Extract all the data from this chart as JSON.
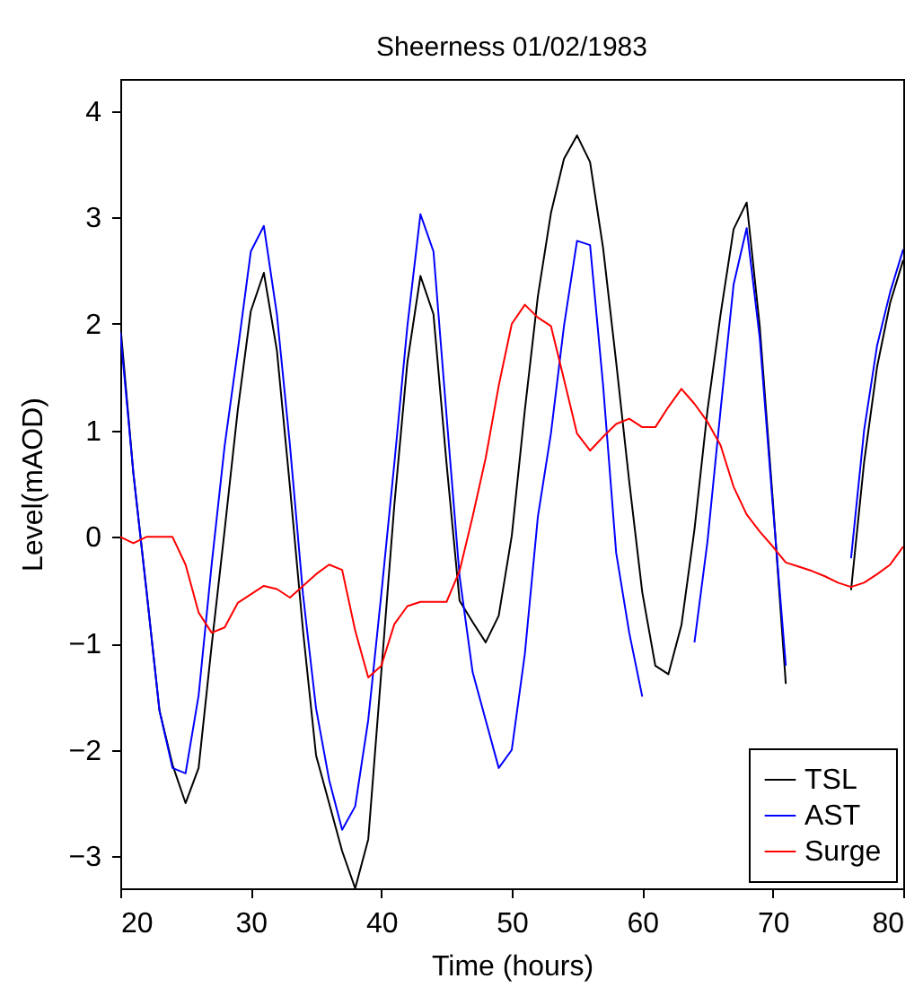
{
  "chart_data": {
    "type": "line",
    "title": "Sheerness 01/02/1983",
    "xlabel": "Time (hours)",
    "ylabel": "Level(mAOD)",
    "x": [
      20,
      21,
      22,
      23,
      24,
      25,
      26,
      27,
      28,
      29,
      30,
      31,
      32,
      33,
      34,
      35,
      36,
      37,
      38,
      39,
      40,
      41,
      42,
      43,
      44,
      45,
      46,
      47,
      48,
      49,
      50,
      51,
      52,
      53,
      54,
      55,
      56,
      57,
      58,
      59,
      60,
      61,
      62,
      63,
      64,
      65,
      66,
      67,
      68,
      69,
      70,
      71,
      72,
      73,
      74,
      75,
      76,
      77,
      78,
      79,
      80
    ],
    "series": [
      {
        "name": "TSL",
        "color": "#000000",
        "values": [
          2.0,
          0.6,
          -0.5,
          -1.63,
          -2.14,
          -2.5,
          -2.17,
          -1.02,
          0.07,
          1.19,
          2.12,
          2.48,
          1.75,
          0.47,
          -0.88,
          -2.05,
          -2.5,
          -2.95,
          -3.3,
          -2.84,
          -1.27,
          0.3,
          1.64,
          2.45,
          2.09,
          0.69,
          -0.6,
          -0.8,
          -0.99,
          -0.74,
          0.01,
          1.19,
          2.26,
          3.04,
          3.55,
          3.77,
          3.52,
          2.71,
          1.64,
          0.52,
          -0.52,
          -1.21,
          -1.29,
          -0.83,
          0.07,
          1.19,
          2.09,
          2.89,
          3.14,
          1.98,
          0.35,
          -1.38,
          null,
          null,
          null,
          null,
          -0.5,
          0.7,
          1.6,
          2.2,
          2.6
        ]
      },
      {
        "name": "AST",
        "color": "#0000ff",
        "values": [
          1.92,
          0.6,
          -0.5,
          -1.63,
          -2.17,
          -2.22,
          -1.49,
          -0.26,
          0.86,
          1.75,
          2.68,
          2.92,
          2.09,
          0.86,
          -0.54,
          -1.61,
          -2.28,
          -2.75,
          -2.53,
          -1.72,
          -0.54,
          0.69,
          1.98,
          3.03,
          2.68,
          1.14,
          -0.37,
          -1.27,
          -1.72,
          -2.17,
          -2.0,
          -1.1,
          0.19,
          0.97,
          1.98,
          2.78,
          2.74,
          1.42,
          -0.15,
          -0.9,
          -1.5,
          null,
          null,
          null,
          -0.99,
          -0.04,
          1.19,
          2.37,
          2.9,
          1.87,
          0.3,
          -1.21,
          null,
          null,
          null,
          null,
          -0.2,
          1.0,
          1.8,
          2.3,
          2.7
        ]
      },
      {
        "name": "Surge",
        "color": "#ff0000",
        "values": [
          0,
          -0.06,
          0,
          0,
          0,
          -0.26,
          -0.71,
          -0.9,
          -0.85,
          -0.62,
          -0.54,
          -0.46,
          -0.49,
          -0.57,
          -0.46,
          -0.35,
          -0.26,
          -0.31,
          -0.88,
          -1.32,
          -1.21,
          -0.82,
          -0.65,
          -0.61,
          -0.61,
          -0.61,
          -0.32,
          0.19,
          0.74,
          1.42,
          2.0,
          2.18,
          2.06,
          1.98,
          1.48,
          0.97,
          0.81,
          0.94,
          1.06,
          1.11,
          1.03,
          1.03,
          1.22,
          1.39,
          1.25,
          1.08,
          0.86,
          0.47,
          0.21,
          0.05,
          -0.09,
          -0.24,
          -0.28,
          -0.32,
          -0.37,
          -0.43,
          -0.47,
          -0.43,
          -0.35,
          -0.26,
          -0.09
        ]
      }
    ],
    "xlim": [
      20,
      80
    ],
    "xticks": [
      20,
      30,
      40,
      50,
      60,
      70,
      80
    ],
    "ylim": [
      -3.3,
      4.3
    ],
    "yticks": [
      -3,
      -2,
      -1,
      0,
      1,
      2,
      3,
      4
    ],
    "grid": false,
    "legend": "bottom right",
    "marker": "none"
  }
}
